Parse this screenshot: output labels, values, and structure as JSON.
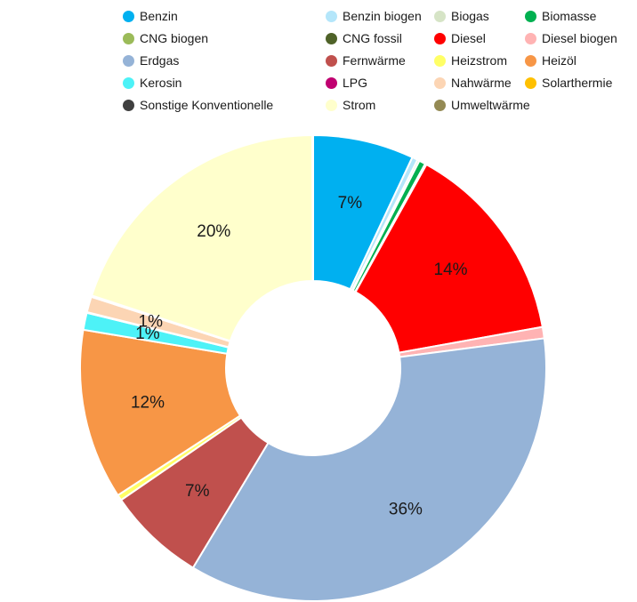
{
  "chart_data": {
    "type": "pie",
    "donut": true,
    "title": "",
    "legend_position": "top",
    "slices": [
      {
        "name": "Benzin",
        "value": 7.1,
        "color": "#00b0f0",
        "label": "7%"
      },
      {
        "name": "Benzin biogen",
        "value": 0.4,
        "color": "#b4e6fa",
        "label": ""
      },
      {
        "name": "Biogas",
        "value": 0.15,
        "color": "#d6e4c6",
        "label": ""
      },
      {
        "name": "Biomasse",
        "value": 0.45,
        "color": "#00b050",
        "label": ""
      },
      {
        "name": "CNG biogen",
        "value": 0.05,
        "color": "#9bbb59",
        "label": ""
      },
      {
        "name": "CNG fossil",
        "value": 0.05,
        "color": "#4f6228",
        "label": ""
      },
      {
        "name": "Diesel",
        "value": 14.3,
        "color": "#ff0000",
        "label": "14%"
      },
      {
        "name": "Diesel biogen",
        "value": 0.8,
        "color": "#ffb3b3",
        "label": ""
      },
      {
        "name": "Erdgas",
        "value": 36.2,
        "color": "#95b3d7",
        "label": "36%"
      },
      {
        "name": "Fernwärme",
        "value": 6.9,
        "color": "#c0504d",
        "label": "7%"
      },
      {
        "name": "Heizstrom",
        "value": 0.4,
        "color": "#ffff66",
        "label": ""
      },
      {
        "name": "Heizöl",
        "value": 12.0,
        "color": "#f79646",
        "label": "12%"
      },
      {
        "name": "Kerosin",
        "value": 1.2,
        "color": "#4df2f7",
        "label": "1%"
      },
      {
        "name": "LPG",
        "value": 0.05,
        "color": "#c00070",
        "label": ""
      },
      {
        "name": "Nahwärme",
        "value": 1.1,
        "color": "#fcd5b4",
        "label": "1%"
      },
      {
        "name": "Solarthermie",
        "value": 0.05,
        "color": "#ffc000",
        "label": ""
      },
      {
        "name": "Sonstige Konventionelle",
        "value": 0.05,
        "color": "#404040",
        "label": ""
      },
      {
        "name": "Strom",
        "value": 20.2,
        "color": "#ffffcc",
        "label": "20%"
      },
      {
        "name": "Umweltwärme",
        "value": 0.05,
        "color": "#948a54",
        "label": ""
      }
    ]
  }
}
